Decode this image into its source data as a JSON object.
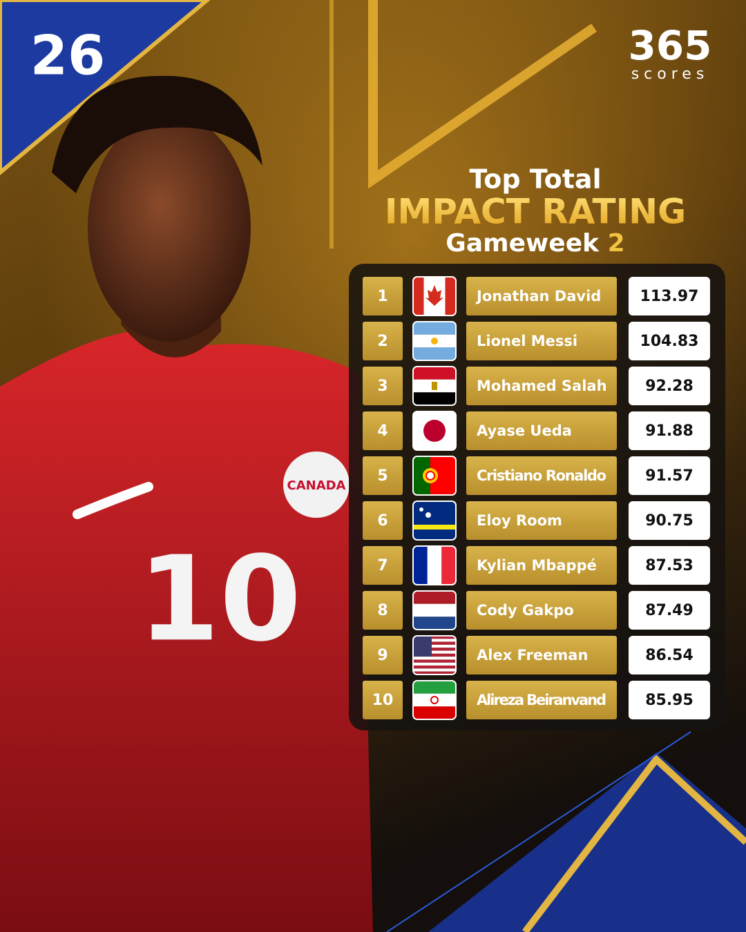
{
  "logos": {
    "event": "26",
    "brand": "365",
    "brand_sub": "scores"
  },
  "jersey": {
    "crest": "CANADA",
    "number": "10"
  },
  "header": {
    "line1": "Top Total",
    "line2": "IMPACT RATING",
    "line3": "Gameweek",
    "gameweek": "2"
  },
  "table": {
    "rows": [
      {
        "rank": 1,
        "name": "Jonathan David",
        "rating": 113.97
      },
      {
        "rank": 2,
        "name": "Lionel Messi",
        "rating": 104.83
      },
      {
        "rank": 3,
        "name": "Mohamed Salah",
        "rating": 92.28
      },
      {
        "rank": 4,
        "name": "Ayase Ueda",
        "rating": 91.88
      },
      {
        "rank": 5,
        "name": "Cristiano Ronaldo",
        "rating": 91.57
      },
      {
        "rank": 6,
        "name": "Eloy Room",
        "rating": 90.75
      },
      {
        "rank": 7,
        "name": "Kylian Mbappé",
        "rating": 87.53
      },
      {
        "rank": 8,
        "name": "Cody Gakpo",
        "rating": 87.49
      },
      {
        "rank": 9,
        "name": "Alex Freeman",
        "rating": 86.54
      },
      {
        "rank": 10,
        "name": "Alireza Beiranvand",
        "rating": 85.95
      }
    ]
  }
}
